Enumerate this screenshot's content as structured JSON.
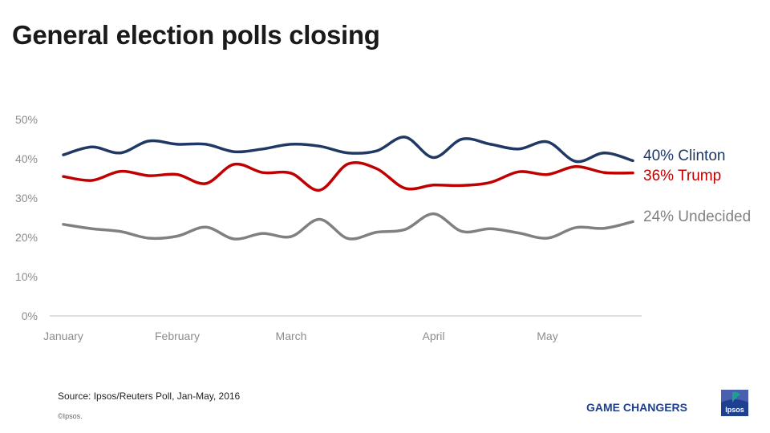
{
  "title": "General election polls closing",
  "chart_data": {
    "type": "line",
    "ylim": [
      0,
      50
    ],
    "yticks": [
      "0%",
      "10%",
      "20%",
      "30%",
      "40%",
      "50%"
    ],
    "ytick_values": [
      0,
      10,
      20,
      30,
      40,
      50
    ],
    "x_labels": [
      {
        "label": "January",
        "x": 0
      },
      {
        "label": "February",
        "x": 4
      },
      {
        "label": "March",
        "x": 8
      },
      {
        "label": "April",
        "x": 13
      },
      {
        "label": "May",
        "x": 17
      }
    ],
    "grid": false,
    "series": [
      {
        "name": "Clinton",
        "end_label": "40% Clinton",
        "color": "#1f3864",
        "x": [
          0,
          1,
          2,
          3,
          4,
          5,
          6,
          7,
          8,
          9,
          10,
          11,
          12,
          13,
          14,
          15,
          16,
          17,
          18,
          19,
          20
        ],
        "values": [
          41,
          43,
          41.5,
          44.5,
          43.7,
          43.7,
          41.8,
          42.5,
          43.7,
          43.2,
          41.5,
          42,
          45.5,
          40.3,
          45,
          43.7,
          42.5,
          44.3,
          39.3,
          41.5,
          39.5
        ]
      },
      {
        "name": "Trump",
        "end_label": "36% Trump",
        "color": "#c00000",
        "x": [
          0,
          1,
          2,
          3,
          4,
          5,
          6,
          7,
          8,
          9,
          10,
          11,
          12,
          13,
          14,
          15,
          16,
          17,
          18,
          19,
          20
        ],
        "values": [
          35.5,
          34.5,
          36.8,
          35.7,
          36,
          33.7,
          38.6,
          36.5,
          36.3,
          32,
          38.7,
          37.5,
          32.5,
          33.3,
          33.2,
          34,
          36.7,
          36,
          38,
          36.5,
          36.4
        ]
      },
      {
        "name": "Undecided",
        "end_label": "24% Undecided",
        "color": "#808080",
        "x": [
          0,
          1,
          2,
          3,
          4,
          5,
          6,
          7,
          8,
          9,
          10,
          11,
          12,
          13,
          14,
          15,
          16,
          17,
          18,
          19,
          20
        ],
        "values": [
          23.3,
          22.2,
          21.5,
          19.8,
          20.3,
          22.6,
          19.6,
          21,
          20.2,
          24.6,
          19.7,
          21.3,
          22,
          26,
          21.5,
          22.2,
          21.1,
          19.8,
          22.5,
          22.3,
          24
        ]
      }
    ]
  },
  "footer": {
    "source": "Source: Ipsos/Reuters Poll, Jan-May, 2016",
    "copyright": "©Ipsos.",
    "tagline": "GAME CHANGERS",
    "logo_text": "Ipsos"
  }
}
